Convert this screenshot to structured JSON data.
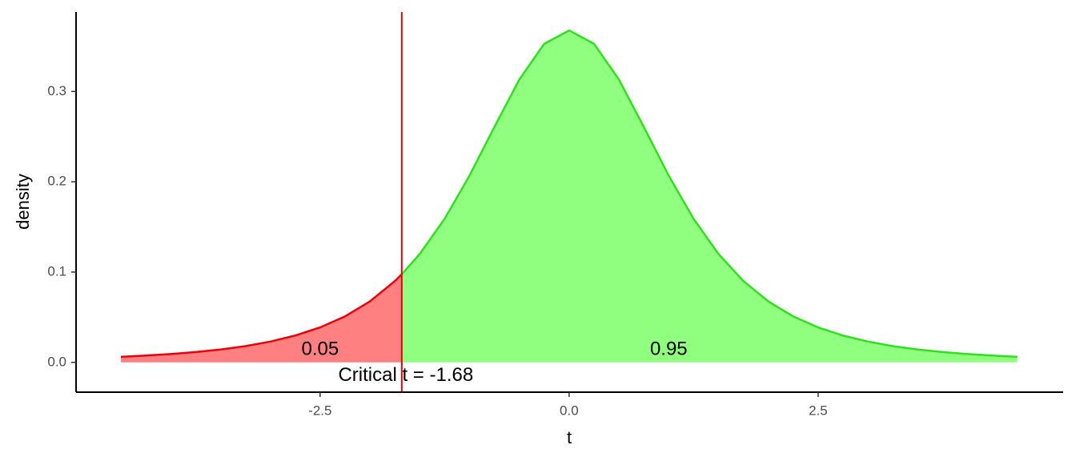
{
  "chart_data": {
    "type": "area",
    "xlabel": "t",
    "ylabel": "density",
    "x": [
      -4.5,
      -4.25,
      -4.0,
      -3.75,
      -3.5,
      -3.25,
      -3.0,
      -2.75,
      -2.5,
      -2.25,
      -2.0,
      -1.75,
      -1.68,
      -1.5,
      -1.25,
      -1.0,
      -0.75,
      -0.5,
      -0.25,
      0.0,
      0.25,
      0.5,
      0.75,
      1.0,
      1.25,
      1.5,
      1.75,
      2.0,
      2.25,
      2.5,
      2.75,
      3.0,
      3.25,
      3.5,
      3.75,
      4.0,
      4.25,
      4.5
    ],
    "series": [
      {
        "color": "#e8000b",
        "fill": "#ff8080",
        "values": [
          0.0061,
          0.0075,
          0.0092,
          0.0114,
          0.0142,
          0.018,
          0.023,
          0.0297,
          0.0387,
          0.0509,
          0.0675,
          0.09,
          0.0976,
          null,
          null,
          null,
          null,
          null,
          null,
          null,
          null,
          null,
          null,
          null,
          null,
          null,
          null,
          null,
          null,
          null,
          null,
          null,
          null,
          null,
          null,
          null,
          null,
          null
        ]
      },
      {
        "color": "#33dd22",
        "fill": "#90ff80",
        "values": [
          null,
          null,
          null,
          null,
          null,
          null,
          null,
          null,
          null,
          null,
          null,
          null,
          0.0976,
          0.12,
          0.1589,
          0.2068,
          0.2607,
          0.3132,
          0.3528,
          0.3676,
          0.3528,
          0.3132,
          0.2607,
          0.2068,
          0.1589,
          0.12,
          0.09,
          0.0675,
          0.0509,
          0.0387,
          0.0297,
          0.023,
          0.018,
          0.0142,
          0.0114,
          0.0092,
          0.0075,
          0.0061
        ]
      }
    ],
    "vline": {
      "x": -1.68,
      "color": "#e8000b"
    },
    "annotations": [
      {
        "text": "0.05",
        "x": -2.5,
        "y": 0.014
      },
      {
        "text": "0.95",
        "x": 1.0,
        "y": 0.014
      },
      {
        "text": "Critical t = -1.68",
        "x": -1.64,
        "y": -0.015
      }
    ],
    "xlim": [
      -4.95,
      4.96
    ],
    "ylim": [
      -0.033,
      0.388
    ],
    "xticks": [
      -2.5,
      {
        "value": 0,
        "label": "0.0"
      },
      2.5
    ],
    "yticks": [
      {
        "value": 0,
        "label": "0.0"
      },
      0.1,
      0.2,
      0.3
    ],
    "grid": false
  }
}
